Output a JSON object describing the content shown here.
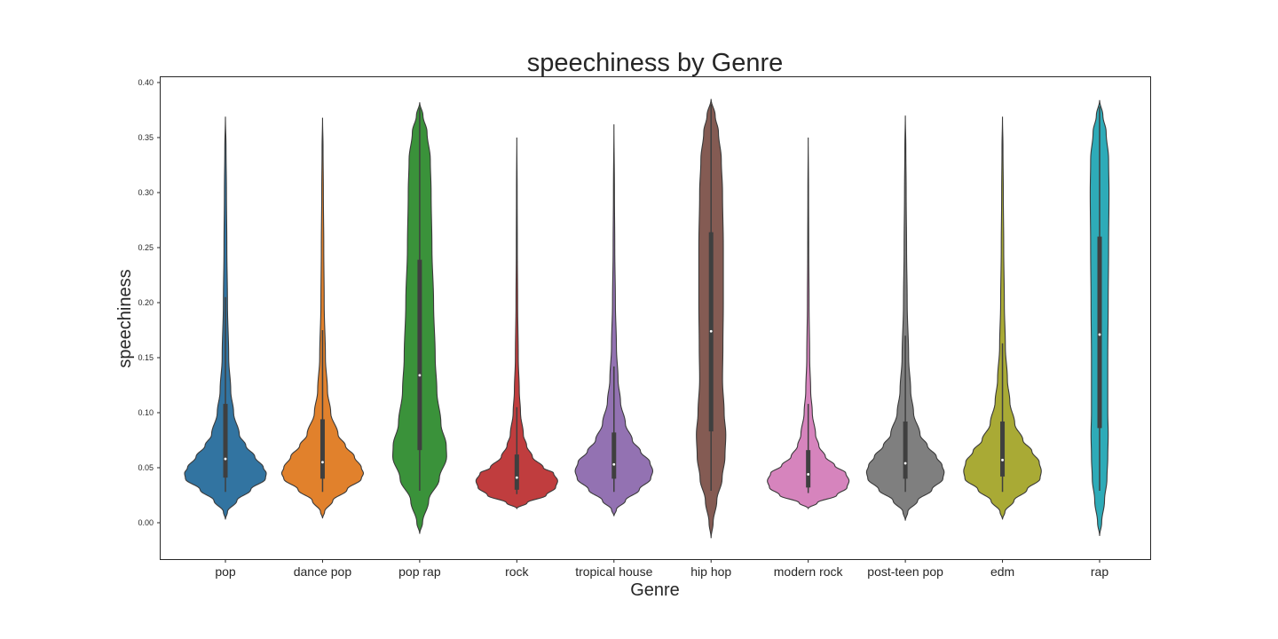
{
  "chart_data": {
    "type": "violin",
    "title": "speechiness by Genre",
    "xlabel": "Genre",
    "ylabel": "speechiness",
    "ylim": [
      -0.035,
      0.405
    ],
    "yticks": [
      "0.00",
      "0.05",
      "0.10",
      "0.15",
      "0.20",
      "0.25",
      "0.30",
      "0.35",
      "0.40"
    ],
    "yticks_values": [
      0.0,
      0.05,
      0.1,
      0.15,
      0.2,
      0.25,
      0.3,
      0.35,
      0.4
    ],
    "grid": false,
    "legend": false,
    "categories": [
      "pop",
      "dance pop",
      "pop rap",
      "rock",
      "tropical house",
      "hip hop",
      "modern rock",
      "post-teen pop",
      "edm",
      "rap"
    ],
    "colors": [
      "#3274a1",
      "#e1812c",
      "#3a923a",
      "#c03d3e",
      "#9372b2",
      "#845b53",
      "#d684bd",
      "#7f7f7f",
      "#a9aa35",
      "#2eabb8"
    ],
    "violins": [
      {
        "name": "pop",
        "min": 0.003,
        "max": 0.369,
        "q1": 0.041,
        "median": 0.058,
        "q3": 0.108,
        "whisker_low": 0.028,
        "whisker_high": 0.205,
        "profile": [
          [
            0.003,
            0.0
          ],
          [
            0.01,
            0.05
          ],
          [
            0.02,
            0.28
          ],
          [
            0.03,
            0.62
          ],
          [
            0.04,
            0.98
          ],
          [
            0.045,
            1.0
          ],
          [
            0.05,
            0.93
          ],
          [
            0.06,
            0.72
          ],
          [
            0.07,
            0.5
          ],
          [
            0.08,
            0.34
          ],
          [
            0.1,
            0.2
          ],
          [
            0.12,
            0.13
          ],
          [
            0.15,
            0.08
          ],
          [
            0.2,
            0.05
          ],
          [
            0.25,
            0.035
          ],
          [
            0.3,
            0.025
          ],
          [
            0.34,
            0.015
          ],
          [
            0.369,
            0.0
          ]
        ]
      },
      {
        "name": "dance pop",
        "min": 0.004,
        "max": 0.368,
        "q1": 0.04,
        "median": 0.055,
        "q3": 0.094,
        "whisker_low": 0.028,
        "whisker_high": 0.175,
        "profile": [
          [
            0.004,
            0.0
          ],
          [
            0.01,
            0.05
          ],
          [
            0.02,
            0.25
          ],
          [
            0.03,
            0.6
          ],
          [
            0.04,
            0.95
          ],
          [
            0.045,
            1.0
          ],
          [
            0.05,
            0.95
          ],
          [
            0.06,
            0.78
          ],
          [
            0.07,
            0.56
          ],
          [
            0.08,
            0.38
          ],
          [
            0.1,
            0.2
          ],
          [
            0.12,
            0.12
          ],
          [
            0.15,
            0.07
          ],
          [
            0.2,
            0.04
          ],
          [
            0.25,
            0.03
          ],
          [
            0.3,
            0.02
          ],
          [
            0.34,
            0.012
          ],
          [
            0.368,
            0.0
          ]
        ]
      },
      {
        "name": "pop rap",
        "min": -0.01,
        "max": 0.382,
        "q1": 0.066,
        "median": 0.134,
        "q3": 0.239,
        "whisker_low": 0.029,
        "whisker_high": 0.377,
        "profile": [
          [
            -0.01,
            0.0
          ],
          [
            0.0,
            0.07
          ],
          [
            0.02,
            0.22
          ],
          [
            0.04,
            0.48
          ],
          [
            0.06,
            0.66
          ],
          [
            0.07,
            0.65
          ],
          [
            0.09,
            0.52
          ],
          [
            0.12,
            0.42
          ],
          [
            0.15,
            0.38
          ],
          [
            0.2,
            0.34
          ],
          [
            0.25,
            0.3
          ],
          [
            0.3,
            0.28
          ],
          [
            0.33,
            0.26
          ],
          [
            0.355,
            0.18
          ],
          [
            0.37,
            0.08
          ],
          [
            0.382,
            0.0
          ]
        ]
      },
      {
        "name": "rock",
        "min": 0.013,
        "max": 0.35,
        "q1": 0.03,
        "median": 0.041,
        "q3": 0.062,
        "whisker_low": 0.026,
        "whisker_high": 0.105,
        "profile": [
          [
            0.013,
            0.0
          ],
          [
            0.018,
            0.25
          ],
          [
            0.025,
            0.72
          ],
          [
            0.032,
            0.95
          ],
          [
            0.038,
            1.0
          ],
          [
            0.045,
            0.9
          ],
          [
            0.05,
            0.65
          ],
          [
            0.06,
            0.38
          ],
          [
            0.07,
            0.24
          ],
          [
            0.08,
            0.16
          ],
          [
            0.1,
            0.09
          ],
          [
            0.12,
            0.06
          ],
          [
            0.15,
            0.035
          ],
          [
            0.2,
            0.02
          ],
          [
            0.25,
            0.012
          ],
          [
            0.3,
            0.008
          ],
          [
            0.35,
            0.0
          ]
        ]
      },
      {
        "name": "tropical house",
        "min": 0.006,
        "max": 0.362,
        "q1": 0.04,
        "median": 0.053,
        "q3": 0.082,
        "whisker_low": 0.028,
        "whisker_high": 0.142,
        "profile": [
          [
            0.006,
            0.0
          ],
          [
            0.012,
            0.06
          ],
          [
            0.02,
            0.28
          ],
          [
            0.03,
            0.62
          ],
          [
            0.04,
            0.9
          ],
          [
            0.047,
            0.95
          ],
          [
            0.055,
            0.88
          ],
          [
            0.065,
            0.65
          ],
          [
            0.075,
            0.45
          ],
          [
            0.09,
            0.28
          ],
          [
            0.11,
            0.16
          ],
          [
            0.13,
            0.1
          ],
          [
            0.16,
            0.06
          ],
          [
            0.2,
            0.035
          ],
          [
            0.25,
            0.02
          ],
          [
            0.3,
            0.012
          ],
          [
            0.362,
            0.0
          ]
        ]
      },
      {
        "name": "hip hop",
        "min": -0.014,
        "max": 0.385,
        "q1": 0.083,
        "median": 0.174,
        "q3": 0.264,
        "whisker_low": 0.029,
        "whisker_high": 0.38,
        "profile": [
          [
            -0.014,
            0.0
          ],
          [
            0.0,
            0.05
          ],
          [
            0.02,
            0.14
          ],
          [
            0.04,
            0.27
          ],
          [
            0.06,
            0.34
          ],
          [
            0.08,
            0.36
          ],
          [
            0.1,
            0.32
          ],
          [
            0.13,
            0.28
          ],
          [
            0.16,
            0.29
          ],
          [
            0.2,
            0.3
          ],
          [
            0.25,
            0.3
          ],
          [
            0.3,
            0.28
          ],
          [
            0.33,
            0.25
          ],
          [
            0.355,
            0.18
          ],
          [
            0.37,
            0.1
          ],
          [
            0.385,
            0.0
          ]
        ]
      },
      {
        "name": "modern rock",
        "min": 0.013,
        "max": 0.35,
        "q1": 0.032,
        "median": 0.044,
        "q3": 0.066,
        "whisker_low": 0.027,
        "whisker_high": 0.108,
        "profile": [
          [
            0.013,
            0.0
          ],
          [
            0.018,
            0.22
          ],
          [
            0.025,
            0.7
          ],
          [
            0.032,
            0.95
          ],
          [
            0.038,
            1.0
          ],
          [
            0.045,
            0.92
          ],
          [
            0.052,
            0.65
          ],
          [
            0.06,
            0.42
          ],
          [
            0.07,
            0.26
          ],
          [
            0.08,
            0.18
          ],
          [
            0.1,
            0.1
          ],
          [
            0.12,
            0.06
          ],
          [
            0.15,
            0.035
          ],
          [
            0.2,
            0.02
          ],
          [
            0.25,
            0.012
          ],
          [
            0.3,
            0.008
          ],
          [
            0.35,
            0.0
          ]
        ]
      },
      {
        "name": "post-teen pop",
        "min": 0.002,
        "max": 0.37,
        "q1": 0.04,
        "median": 0.054,
        "q3": 0.092,
        "whisker_low": 0.028,
        "whisker_high": 0.17,
        "profile": [
          [
            0.002,
            0.0
          ],
          [
            0.01,
            0.06
          ],
          [
            0.02,
            0.3
          ],
          [
            0.03,
            0.65
          ],
          [
            0.04,
            0.92
          ],
          [
            0.046,
            0.95
          ],
          [
            0.052,
            0.9
          ],
          [
            0.06,
            0.76
          ],
          [
            0.07,
            0.54
          ],
          [
            0.08,
            0.36
          ],
          [
            0.1,
            0.2
          ],
          [
            0.12,
            0.13
          ],
          [
            0.15,
            0.08
          ],
          [
            0.2,
            0.045
          ],
          [
            0.25,
            0.03
          ],
          [
            0.3,
            0.02
          ],
          [
            0.34,
            0.012
          ],
          [
            0.37,
            0.0
          ]
        ]
      },
      {
        "name": "edm",
        "min": 0.003,
        "max": 0.369,
        "q1": 0.042,
        "median": 0.057,
        "q3": 0.092,
        "whisker_low": 0.028,
        "whisker_high": 0.163,
        "profile": [
          [
            0.003,
            0.0
          ],
          [
            0.01,
            0.06
          ],
          [
            0.02,
            0.28
          ],
          [
            0.03,
            0.6
          ],
          [
            0.04,
            0.92
          ],
          [
            0.047,
            0.95
          ],
          [
            0.055,
            0.9
          ],
          [
            0.065,
            0.72
          ],
          [
            0.075,
            0.5
          ],
          [
            0.09,
            0.3
          ],
          [
            0.11,
            0.18
          ],
          [
            0.13,
            0.12
          ],
          [
            0.16,
            0.07
          ],
          [
            0.2,
            0.045
          ],
          [
            0.25,
            0.03
          ],
          [
            0.3,
            0.02
          ],
          [
            0.34,
            0.012
          ],
          [
            0.369,
            0.0
          ]
        ]
      },
      {
        "name": "rap",
        "min": -0.012,
        "max": 0.384,
        "q1": 0.086,
        "median": 0.171,
        "q3": 0.26,
        "whisker_low": 0.029,
        "whisker_high": 0.378,
        "profile": [
          [
            -0.012,
            0.0
          ],
          [
            0.0,
            0.05
          ],
          [
            0.02,
            0.12
          ],
          [
            0.04,
            0.18
          ],
          [
            0.06,
            0.2
          ],
          [
            0.08,
            0.21
          ],
          [
            0.1,
            0.2
          ],
          [
            0.15,
            0.2
          ],
          [
            0.2,
            0.21
          ],
          [
            0.25,
            0.22
          ],
          [
            0.3,
            0.23
          ],
          [
            0.33,
            0.22
          ],
          [
            0.355,
            0.16
          ],
          [
            0.37,
            0.08
          ],
          [
            0.384,
            0.0
          ]
        ]
      }
    ]
  }
}
